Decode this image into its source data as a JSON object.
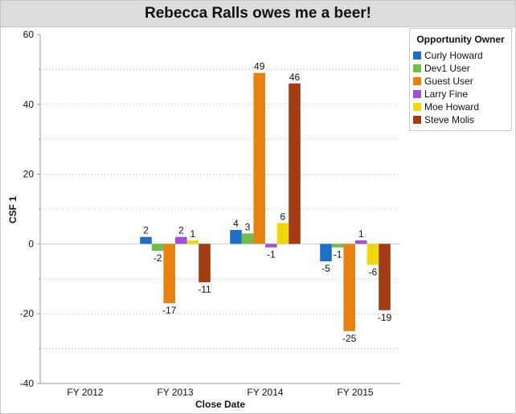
{
  "chart_data": {
    "type": "bar",
    "title": "Rebecca Ralls owes me a beer!",
    "xlabel": "Close Date",
    "ylabel": "CSF 1",
    "ylim": [
      -40,
      60
    ],
    "yticks": [
      -40,
      -20,
      0,
      20,
      40,
      60
    ],
    "categories": [
      "FY 2012",
      "FY 2013",
      "FY 2014",
      "FY 2015"
    ],
    "legend_title": "Opportunity Owner",
    "legend_position": "top-right",
    "series": [
      {
        "name": "Curly Howard",
        "color": "#1f6fc5",
        "values": [
          null,
          2,
          4,
          -5
        ]
      },
      {
        "name": "Dev1 User",
        "color": "#6fbe4a",
        "values": [
          null,
          -2,
          3,
          -1
        ]
      },
      {
        "name": "Guest User",
        "color": "#e8810f",
        "values": [
          null,
          -17,
          49,
          -25
        ]
      },
      {
        "name": "Larry Fine",
        "color": "#a64fd6",
        "values": [
          null,
          2,
          -1,
          1
        ]
      },
      {
        "name": "Moe Howard",
        "color": "#f2d80a",
        "values": [
          null,
          1,
          6,
          -6
        ]
      },
      {
        "name": "Steve Molis",
        "color": "#a43c13",
        "values": [
          null,
          -11,
          46,
          -19
        ]
      }
    ]
  }
}
